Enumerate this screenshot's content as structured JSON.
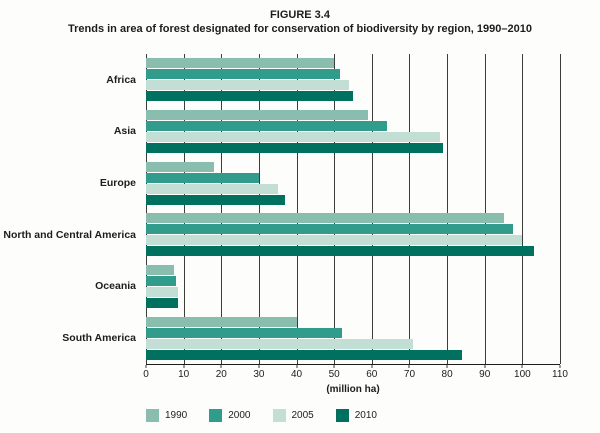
{
  "figure": {
    "number": "FIGURE 3.4",
    "title": "Trends in area of forest designated for conservation of biodiversity by region, 1990–2010"
  },
  "chart_data": {
    "type": "bar",
    "orientation": "horizontal",
    "title": "Trends in area of forest designated for conservation of biodiversity by region, 1990–2010",
    "categories": [
      "Africa",
      "Asia",
      "Europe",
      "North and Central America",
      "Oceania",
      "South America"
    ],
    "series": [
      {
        "name": "1990",
        "color": "#89bdae",
        "values": [
          50,
          59,
          18,
          95,
          7.5,
          40
        ]
      },
      {
        "name": "2000",
        "color": "#319c8b",
        "values": [
          51.5,
          64,
          30,
          97.5,
          8,
          52
        ]
      },
      {
        "name": "2005",
        "color": "#c3ded5",
        "values": [
          54,
          78,
          35,
          100,
          8.5,
          71
        ]
      },
      {
        "name": "2010",
        "color": "#00705f",
        "values": [
          55,
          79,
          37,
          103,
          8.5,
          84
        ]
      }
    ],
    "xlabel": "(million ha)",
    "xlim": [
      0,
      110
    ],
    "xticks": [
      0,
      10,
      20,
      30,
      40,
      50,
      60,
      70,
      80,
      90,
      100,
      110
    ],
    "grid": "vertical",
    "legend_position": "bottom"
  }
}
